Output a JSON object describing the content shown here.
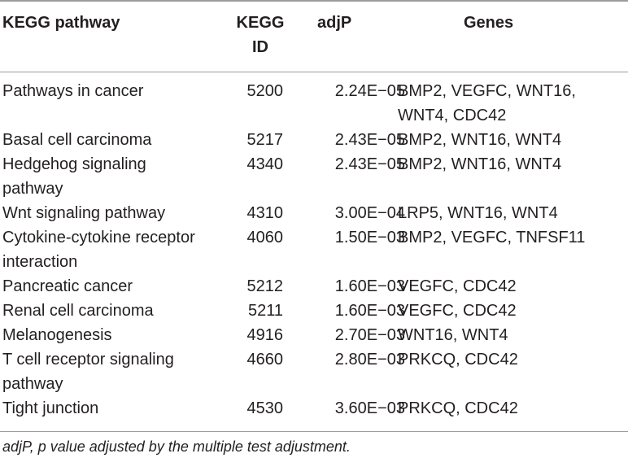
{
  "header": {
    "pathway": "KEGG pathway",
    "id_line1": "KEGG",
    "id_line2": "ID",
    "adjp": "adjP",
    "genes": "Genes"
  },
  "rows": [
    {
      "pathway": [
        "Pathways in cancer"
      ],
      "id": "5200",
      "adjp": "2.24E−05",
      "genes": [
        "BMP2, VEGFC, WNT16,",
        "WNT4, CDC42"
      ]
    },
    {
      "pathway": [
        "Basal cell carcinoma"
      ],
      "id": "5217",
      "adjp": "2.43E−05",
      "genes": [
        "BMP2, WNT16, WNT4"
      ]
    },
    {
      "pathway": [
        "Hedgehog signaling",
        "pathway"
      ],
      "id": "4340",
      "adjp": "2.43E−05",
      "genes": [
        "BMP2, WNT16, WNT4"
      ]
    },
    {
      "pathway": [
        "Wnt signaling pathway"
      ],
      "id": "4310",
      "adjp": "3.00E−04",
      "genes": [
        "LRP5, WNT16, WNT4"
      ]
    },
    {
      "pathway": [
        "Cytokine-cytokine receptor",
        "interaction"
      ],
      "id": "4060",
      "adjp": "1.50E−03",
      "genes": [
        "BMP2, VEGFC, TNFSF11"
      ]
    },
    {
      "pathway": [
        "Pancreatic cancer"
      ],
      "id": "5212",
      "adjp": "1.60E−03",
      "genes": [
        "VEGFC, CDC42"
      ]
    },
    {
      "pathway": [
        "Renal cell carcinoma"
      ],
      "id": "5211",
      "adjp": "1.60E−03",
      "genes": [
        "VEGFC, CDC42"
      ]
    },
    {
      "pathway": [
        "Melanogenesis"
      ],
      "id": "4916",
      "adjp": "2.70E−03",
      "genes": [
        "WNT16, WNT4"
      ]
    },
    {
      "pathway": [
        "T cell receptor signaling",
        "pathway"
      ],
      "id": "4660",
      "adjp": "2.80E−03",
      "genes": [
        "PRKCQ, CDC42"
      ]
    },
    {
      "pathway": [
        "Tight junction"
      ],
      "id": "4530",
      "adjp": "3.60E−03",
      "genes": [
        "PRKCQ, CDC42"
      ]
    }
  ],
  "footnote": "adjP, p value adjusted by the multiple test adjustment."
}
